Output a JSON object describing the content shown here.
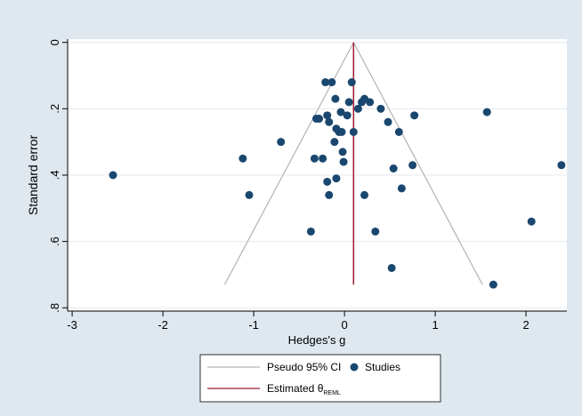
{
  "chart_data": {
    "type": "scatter",
    "title": "",
    "xlabel": "Hedges's g",
    "ylabel": "Standard error",
    "xlim": [
      -3.05,
      2.45
    ],
    "ylim": [
      0.81,
      -0.01
    ],
    "y_inverted": true,
    "grid": "horizontal",
    "legend_position": "bottom",
    "x_ticks": [
      {
        "value": -3,
        "label": "-3"
      },
      {
        "value": -2,
        "label": "-2"
      },
      {
        "value": -1,
        "label": "-1"
      },
      {
        "value": 0,
        "label": "0"
      },
      {
        "value": 1,
        "label": "1"
      },
      {
        "value": 2,
        "label": "2"
      }
    ],
    "y_ticks": [
      {
        "value": 0,
        "label": "0"
      },
      {
        "value": 0.2,
        "label": ".2"
      },
      {
        "value": 0.4,
        "label": ".4"
      },
      {
        "value": 0.6,
        "label": ".6"
      },
      {
        "value": 0.8,
        "label": ".8"
      }
    ],
    "estimate": 0.1,
    "ci_funnel": {
      "apex": {
        "x": 0.1,
        "y": 0
      },
      "left_base": {
        "x": -1.32,
        "y": 0.73
      },
      "right_base": {
        "x": 1.52,
        "y": 0.73
      }
    },
    "legend": [
      {
        "label": "Pseudo 95% CI",
        "marker": "line",
        "color": "#b3b3b3"
      },
      {
        "label": "Studies",
        "marker": "dot",
        "color": "#1a476f"
      },
      {
        "label": "Estimated θ",
        "subscript": "REML",
        "marker": "line",
        "color": "#9e1b32"
      }
    ],
    "colors": {
      "studies": "#1a476f",
      "estimate_line": "#9e1b32",
      "ci_lines": "#b3b3b3",
      "grid": "#e4eaef",
      "outer_background": "#dfe8ef",
      "plot_background": "#ffffff"
    },
    "series": [
      {
        "name": "Studies",
        "points": [
          {
            "x": -2.55,
            "y": 0.4
          },
          {
            "x": -1.12,
            "y": 0.35
          },
          {
            "x": -1.05,
            "y": 0.46
          },
          {
            "x": -0.7,
            "y": 0.3
          },
          {
            "x": -0.37,
            "y": 0.57
          },
          {
            "x": -0.33,
            "y": 0.35
          },
          {
            "x": -0.31,
            "y": 0.23
          },
          {
            "x": -0.28,
            "y": 0.23
          },
          {
            "x": -0.24,
            "y": 0.35
          },
          {
            "x": -0.21,
            "y": 0.12
          },
          {
            "x": -0.19,
            "y": 0.22
          },
          {
            "x": -0.19,
            "y": 0.42
          },
          {
            "x": -0.17,
            "y": 0.24
          },
          {
            "x": -0.17,
            "y": 0.46
          },
          {
            "x": -0.14,
            "y": 0.12
          },
          {
            "x": -0.11,
            "y": 0.3
          },
          {
            "x": -0.1,
            "y": 0.17
          },
          {
            "x": -0.09,
            "y": 0.26
          },
          {
            "x": -0.09,
            "y": 0.41
          },
          {
            "x": -0.06,
            "y": 0.27
          },
          {
            "x": -0.04,
            "y": 0.21
          },
          {
            "x": -0.03,
            "y": 0.27
          },
          {
            "x": -0.02,
            "y": 0.33
          },
          {
            "x": -0.01,
            "y": 0.36
          },
          {
            "x": 0.03,
            "y": 0.22
          },
          {
            "x": 0.05,
            "y": 0.18
          },
          {
            "x": 0.08,
            "y": 0.12
          },
          {
            "x": 0.1,
            "y": 0.27
          },
          {
            "x": 0.15,
            "y": 0.2
          },
          {
            "x": 0.19,
            "y": 0.18
          },
          {
            "x": 0.22,
            "y": 0.17
          },
          {
            "x": 0.22,
            "y": 0.46
          },
          {
            "x": 0.28,
            "y": 0.18
          },
          {
            "x": 0.34,
            "y": 0.57
          },
          {
            "x": 0.4,
            "y": 0.2
          },
          {
            "x": 0.48,
            "y": 0.24
          },
          {
            "x": 0.52,
            "y": 0.68
          },
          {
            "x": 0.54,
            "y": 0.38
          },
          {
            "x": 0.6,
            "y": 0.27
          },
          {
            "x": 0.63,
            "y": 0.44
          },
          {
            "x": 0.75,
            "y": 0.37
          },
          {
            "x": 0.77,
            "y": 0.22
          },
          {
            "x": 1.57,
            "y": 0.21
          },
          {
            "x": 1.64,
            "y": 0.73
          },
          {
            "x": 2.06,
            "y": 0.54
          },
          {
            "x": 2.39,
            "y": 0.37
          }
        ]
      }
    ]
  }
}
